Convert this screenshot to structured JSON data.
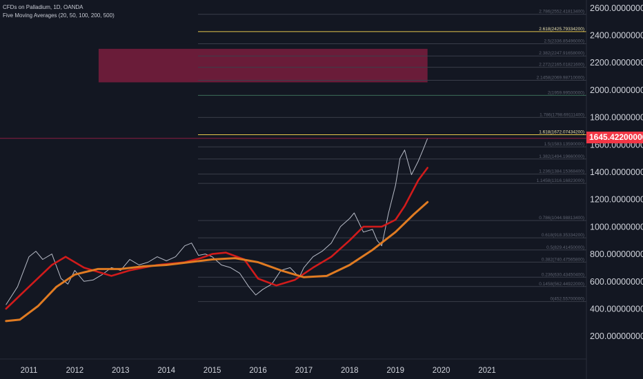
{
  "legend": {
    "symbol": "CFDs on Palladium, 1D, OANDA",
    "indicator": "Five Moving Averages (20, 50, 100, 200, 500)"
  },
  "last_price": "1645.42200000",
  "colors": {
    "background": "#131722",
    "price": "#b8bcc8",
    "ma_short": "#d11b1b",
    "ma_long": "#e07b22",
    "fib_yellow": "#e8c84c",
    "fib_green": "#3c6e5a",
    "fib_gray": "#3a3e4a",
    "zone": "#8c1f43",
    "tag": "#f23645"
  },
  "chart_data": {
    "type": "line",
    "title": "CFDs on Palladium, 1D, OANDA",
    "xlabel": "",
    "ylabel": "",
    "ylim": [
      0,
      2650
    ],
    "x_ticks": [
      "2011",
      "2012",
      "2013",
      "2014",
      "2015",
      "2016",
      "2017",
      "2018",
      "2019",
      "2020",
      "2021"
    ],
    "y_ticks": [
      "2600.00000000",
      "2400.00000000",
      "2200.00000000",
      "2000.00000000",
      "1800.00000000",
      "1600.00000000",
      "1400.00000000",
      "1200.00000000",
      "1000.00000000",
      "800.00000000",
      "600.00000000",
      "400.00000000",
      "200.00000000"
    ],
    "series": [
      {
        "name": "Price",
        "x": [
          2010.5,
          2010.75,
          2011.0,
          2011.15,
          2011.3,
          2011.5,
          2011.7,
          2011.85,
          2012.0,
          2012.2,
          2012.4,
          2012.6,
          2012.8,
          2013.0,
          2013.2,
          2013.4,
          2013.6,
          2013.8,
          2014.0,
          2014.2,
          2014.4,
          2014.55,
          2014.7,
          2014.85,
          2015.0,
          2015.2,
          2015.4,
          2015.6,
          2015.8,
          2015.95,
          2016.1,
          2016.3,
          2016.5,
          2016.7,
          2016.9,
          2017.0,
          2017.2,
          2017.4,
          2017.6,
          2017.8,
          2018.0,
          2018.1,
          2018.3,
          2018.5,
          2018.6,
          2018.7,
          2018.85,
          2019.0,
          2019.1,
          2019.2,
          2019.35,
          2019.5,
          2019.6,
          2019.7
        ],
        "y": [
          430,
          560,
          780,
          820,
          760,
          800,
          620,
          580,
          680,
          600,
          610,
          650,
          700,
          680,
          760,
          720,
          740,
          780,
          750,
          780,
          860,
          880,
          790,
          800,
          780,
          720,
          700,
          660,
          560,
          500,
          540,
          580,
          680,
          700,
          630,
          700,
          780,
          820,
          880,
          1000,
          1060,
          1100,
          960,
          980,
          900,
          860,
          1100,
          1300,
          1500,
          1560,
          1380,
          1480,
          1560,
          1645
        ]
      },
      {
        "name": "MA 200",
        "x": [
          2010.5,
          2011.0,
          2011.5,
          2011.8,
          2012.2,
          2012.8,
          2013.2,
          2013.8,
          2014.4,
          2014.75,
          2015.0,
          2015.3,
          2015.7,
          2016.0,
          2016.4,
          2016.8,
          2017.2,
          2017.6,
          2018.0,
          2018.3,
          2018.7,
          2019.0,
          2019.2,
          2019.5,
          2019.7
        ],
        "y": [
          400,
          560,
          720,
          780,
          700,
          640,
          680,
          720,
          740,
          770,
          800,
          810,
          760,
          620,
          570,
          610,
          700,
          780,
          900,
          1000,
          1000,
          1050,
          1150,
          1340,
          1430
        ]
      },
      {
        "name": "MA 500",
        "x": [
          2010.5,
          2010.8,
          2011.2,
          2011.6,
          2012.0,
          2012.5,
          2013.0,
          2013.5,
          2014.0,
          2014.5,
          2015.0,
          2015.5,
          2016.0,
          2016.5,
          2017.0,
          2017.5,
          2018.0,
          2018.5,
          2019.0,
          2019.4,
          2019.7
        ],
        "y": [
          310,
          320,
          420,
          560,
          650,
          690,
          690,
          710,
          720,
          740,
          760,
          770,
          740,
          680,
          630,
          640,
          720,
          830,
          960,
          1090,
          1180
        ]
      }
    ],
    "fib_levels": [
      {
        "label": "2.786(2552.41813400)",
        "price": 2552.418,
        "color": "gray"
      },
      {
        "label": "2.618(2425.79334200)",
        "price": 2425.793,
        "color": "yellow"
      },
      {
        "label": "2.5(2336.85496000)",
        "price": 2336.855,
        "color": "gray"
      },
      {
        "label": "2.382(2247.91658000)",
        "price": 2247.917,
        "color": "gray"
      },
      {
        "label": "2.272(2165.01821600)",
        "price": 2165.018,
        "color": "gray"
      },
      {
        "label": "2.1458(2069.98710000)",
        "price": 2069.987,
        "color": "gray"
      },
      {
        "label": "2(1959.99500000)",
        "price": 1959.995,
        "color": "green"
      },
      {
        "label": "1.786(1798.69111400)",
        "price": 1798.691,
        "color": "gray"
      },
      {
        "label": "1.618(1672.07434200)",
        "price": 1672.074,
        "color": "yellow"
      },
      {
        "label": "1.5(1583.13590000)",
        "price": 1583.136,
        "color": "gray"
      },
      {
        "label": "1.382(1494.19660000)",
        "price": 1494.197,
        "color": "gray"
      },
      {
        "label": "1.236(1384.15368400)",
        "price": 1384.154,
        "color": "gray"
      },
      {
        "label": "1.1458(1316.16823000)",
        "price": 1316.168,
        "color": "gray"
      },
      {
        "label": "0.786(1044.98813400)",
        "price": 1044.988,
        "color": "gray"
      },
      {
        "label": "0.618(918.35334200)",
        "price": 918.353,
        "color": "gray"
      },
      {
        "label": "0.5(829.41450000)",
        "price": 829.415,
        "color": "gray"
      },
      {
        "label": "0.382(740.47565800)",
        "price": 740.476,
        "color": "gray"
      },
      {
        "label": "0.236(630.43450400)",
        "price": 630.435,
        "color": "gray"
      },
      {
        "label": "0.1458(562.44922000)",
        "price": 562.449,
        "color": "gray"
      },
      {
        "label": "0(452.55700000)",
        "price": 452.557,
        "color": "gray"
      }
    ],
    "zone": {
      "price_from": 2055,
      "price_to": 2300,
      "x_from": 2012.52,
      "x_to": 2019.7
    },
    "last_value": 1645.422
  }
}
